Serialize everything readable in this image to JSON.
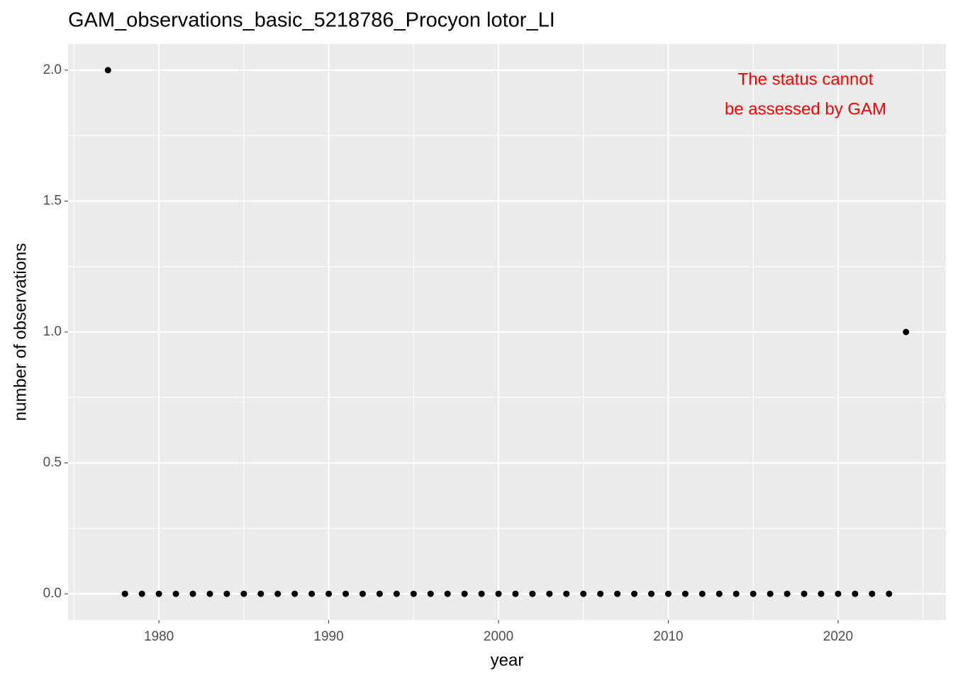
{
  "chart_data": {
    "type": "scatter",
    "title": "GAM_observations_basic_5218786_Procyon lotor_LI",
    "x_label": "year",
    "y_label": "number of observations",
    "annotation": [
      "The status cannot",
      "be assessed by GAM"
    ],
    "annotation_color": "#ff0000",
    "x": [
      1977,
      1978,
      1979,
      1980,
      1981,
      1982,
      1983,
      1984,
      1985,
      1986,
      1987,
      1988,
      1989,
      1990,
      1991,
      1992,
      1993,
      1994,
      1995,
      1996,
      1997,
      1998,
      1999,
      2000,
      2001,
      2002,
      2003,
      2004,
      2005,
      2006,
      2007,
      2008,
      2009,
      2010,
      2011,
      2012,
      2013,
      2014,
      2015,
      2016,
      2017,
      2018,
      2019,
      2020,
      2021,
      2022,
      2023,
      2024
    ],
    "values": [
      2,
      0,
      0,
      0,
      0,
      0,
      0,
      0,
      0,
      0,
      0,
      0,
      0,
      0,
      0,
      0,
      0,
      0,
      0,
      0,
      0,
      0,
      0,
      0,
      0,
      0,
      0,
      0,
      0,
      0,
      0,
      0,
      0,
      0,
      0,
      0,
      0,
      0,
      0,
      0,
      0,
      0,
      0,
      0,
      0,
      0,
      0,
      1
    ],
    "color": "#000000",
    "xlim": [
      1974.65,
      2026.35
    ],
    "xticks": [
      1980,
      1990,
      2000,
      2010,
      2020
    ],
    "ylim": [
      -0.1,
      2.1
    ],
    "yticks": [
      {
        "value": 0,
        "label": "0.0"
      },
      {
        "value": 0.5,
        "label": "0.5"
      },
      {
        "value": 1,
        "label": "1.0"
      },
      {
        "value": 1.5,
        "label": "1.5"
      },
      {
        "value": 2,
        "label": "2.0"
      }
    ],
    "grid": true
  }
}
